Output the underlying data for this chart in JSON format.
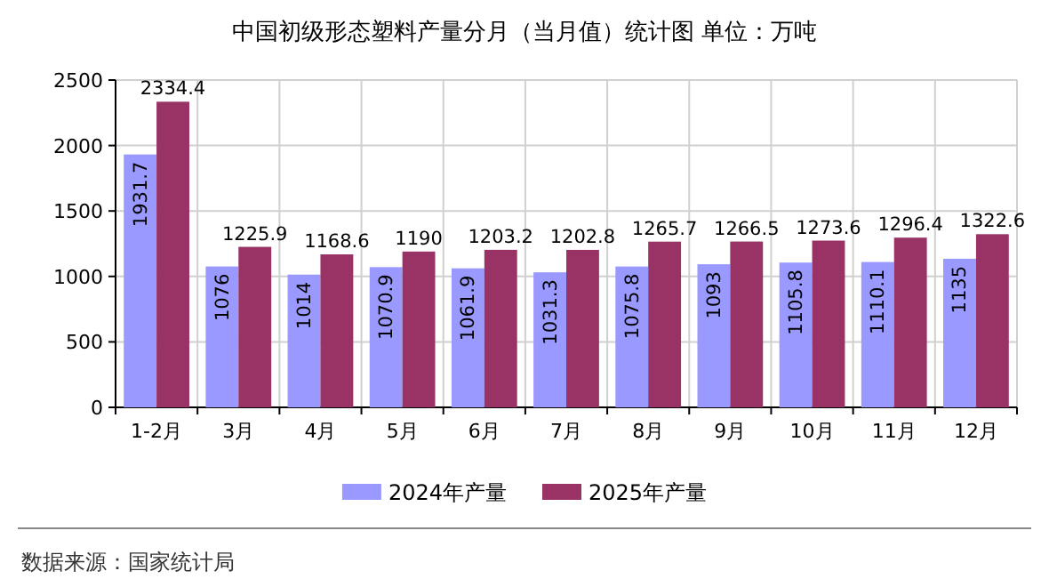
{
  "chart_data": {
    "type": "bar",
    "title": "中国初级形态塑料产量分月（当月值）统计图 单位：万吨",
    "categories": [
      "1-2月",
      "3月",
      "4月",
      "5月",
      "6月",
      "7月",
      "8月",
      "9月",
      "10月",
      "11月",
      "12月"
    ],
    "series": [
      {
        "name": "2024年产量",
        "color": "#9999ff",
        "values": [
          1931.7,
          1076,
          1014,
          1070.9,
          1061.9,
          1031.3,
          1075.8,
          1093,
          1105.8,
          1110.1,
          1135
        ]
      },
      {
        "name": "2025年产量",
        "color": "#993366",
        "values": [
          2334.4,
          1225.9,
          1168.6,
          1190,
          1203.2,
          1202.8,
          1265.7,
          1266.5,
          1273.6,
          1296.4,
          1322.6
        ]
      }
    ],
    "ylim": [
      0,
      2500
    ],
    "yticks": [
      0,
      500,
      1000,
      1500,
      2000,
      2500
    ],
    "grid": true,
    "legend": "bottom",
    "data_labels": true,
    "annotations": [
      "数据来源：国家统计局"
    ]
  }
}
